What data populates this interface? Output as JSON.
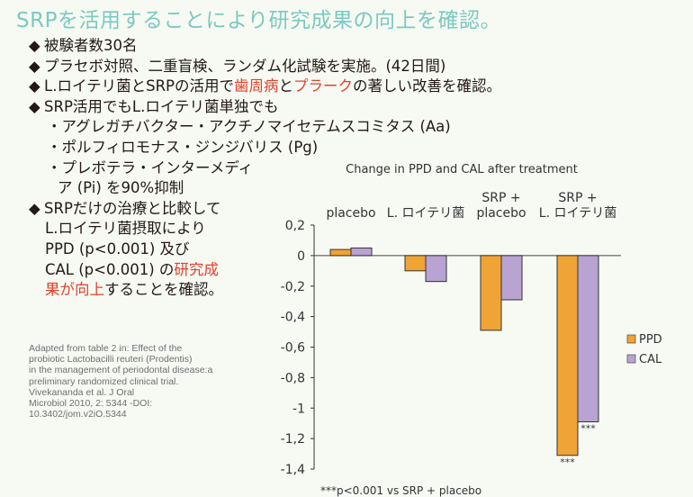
{
  "title": "SRPを活用することにより研究成果の向上を確認。",
  "bullets": {
    "b1": "被験者数30名",
    "b2": "プラセボ対照、二重盲検、ランダム化試験を実施。(42日間)",
    "b3_pre": "L.ロイテリ菌とSRPの活用で",
    "b3_red1": "歯周病",
    "b3_mid": "と",
    "b3_red2": "プラーク",
    "b3_post": "の著しい改善を確認。",
    "b4": "SRP活用でもL.ロイテリ菌単独でも",
    "b4_sub1": "・アグレガチバクター・アクチノマイセテムスコミタス (Aa)",
    "b4_sub2": "・ポルフィロモナス・ジンジバリス (Pg)",
    "b4_sub3a": "・プレボテラ・インターメディ",
    "b4_sub3b": "ア (Pi) を90%抑制",
    "b5_l1": "SRPだけの治療と比較して",
    "b5_l2": "L.ロイテリ菌摂取により",
    "b5_l3": "PPD (p<0.001) 及び",
    "b5_l4_pre": "CAL (p<0.001) の",
    "b5_l4_red": "研究成",
    "b5_l5_red": "果が向上",
    "b5_l5_post": "することを確認。"
  },
  "source_lines": [
    "Adapted from table 2 in: Effect of the",
    "probiotic Lactobacilli reuteri (Prodentis)",
    "in the management of periodontal disease:a",
    "preliminary randomized clinical trial.",
    "Vivekananda et al. J Oral",
    "Microbiol 2010, 2: 5344 -DOI:",
    "10.3402/jom.v2iO.5344"
  ],
  "chart_data": {
    "type": "bar",
    "title": "Change in PPD and CAL after treatment",
    "categories": [
      [
        "placebo"
      ],
      [
        "L. ロイテリ菌"
      ],
      [
        "SRP +",
        "placebo"
      ],
      [
        "SRP +",
        "L. ロイテリ菌"
      ]
    ],
    "series": [
      {
        "name": "PPD",
        "color": "#f0a436",
        "values": [
          0.04,
          -0.1,
          -0.49,
          -1.31
        ]
      },
      {
        "name": "CAL",
        "color": "#b8a3d3",
        "values": [
          0.05,
          -0.17,
          -0.29,
          -1.09
        ]
      }
    ],
    "ylim": [
      -1.4,
      0.2
    ],
    "yticks": [
      0.2,
      0,
      -0.2,
      -0.4,
      -0.6,
      -0.8,
      -1,
      -1.2,
      -1.4
    ],
    "ytick_labels": [
      "0,2",
      "0",
      "-0,2",
      "-0,4",
      "-0,6",
      "-0,8",
      "-1",
      "-1,2",
      "-1,4"
    ],
    "annotations": [
      {
        "category": 3,
        "series": 0,
        "text": "***"
      },
      {
        "category": 3,
        "series": 1,
        "text": "***"
      }
    ],
    "footnote": "***p<0.001 vs SRP + placebo",
    "legend_position": "right",
    "grid": false
  }
}
